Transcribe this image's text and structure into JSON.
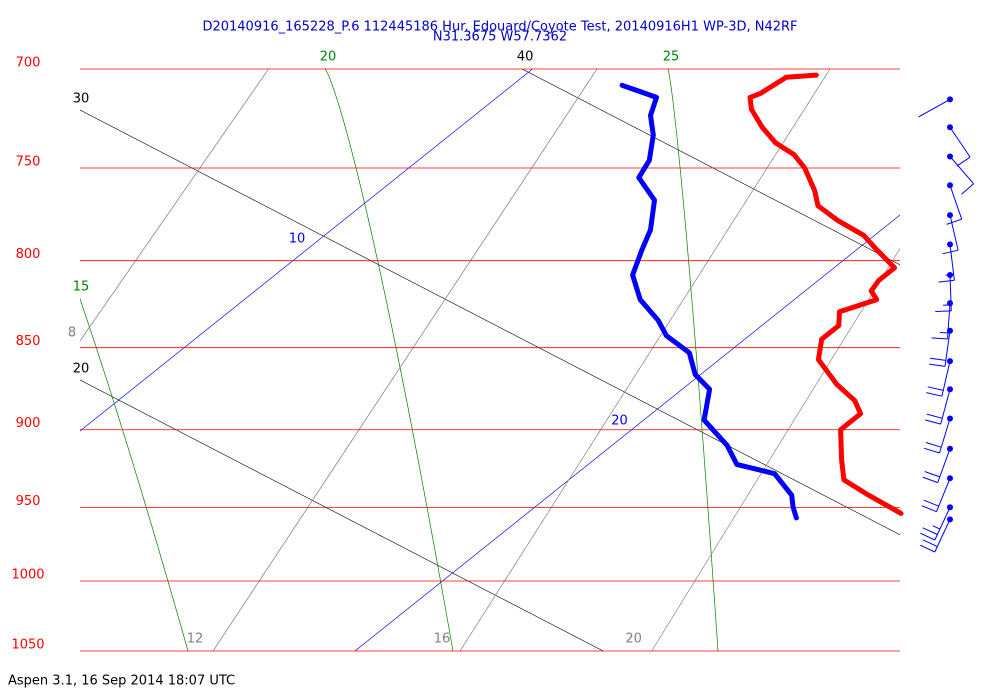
{
  "chart_data": {
    "type": "skewt",
    "title": "D20140916_165228_P.6 112445186 Hur. Edouard/Coyote Test, 20140916H1 WP-3D, N42RF",
    "subtitle": "N31.3675 W57.7362",
    "caption": "Aspen 3.1, 16 Sep 2014  18:07 UTC",
    "log_y": true,
    "ylim": [
      700,
      1050
    ],
    "yticks": [
      700,
      750,
      800,
      850,
      900,
      950,
      1000,
      1050
    ],
    "pressure_line_color": "#ff0000",
    "series": [
      {
        "color": "#ff0000",
        "pressure": [
          703,
          704,
          712,
          714,
          720,
          729,
          737,
          743,
          750,
          762,
          770,
          778,
          786,
          793,
          804,
          811,
          817,
          822,
          829,
          837,
          845,
          857,
          872,
          882,
          890,
          900,
          919,
          932,
          942,
          948,
          954
        ],
        "values": [
          15.3,
          14.8,
          14.7,
          14.6,
          14.9,
          15.5,
          16.1,
          16.7,
          17.2,
          17.9,
          18.3,
          19.0,
          19.8,
          20.3,
          21.1,
          21.1,
          21.2,
          21.5,
          21.1,
          21.4,
          21.4,
          21.8,
          22.7,
          23.4,
          23.8,
          23.8,
          24.5,
          25.0,
          25.8,
          26.3,
          26.8
        ]
      },
      {
        "color": "#0000ff",
        "pressure": [
          708,
          714,
          723,
          733,
          746,
          755,
          767,
          783,
          794,
          808,
          822,
          834,
          843,
          853,
          866,
          875,
          894,
          910,
          922,
          928,
          942,
          950,
          957
        ],
        "values": [
          12.0,
          12.9,
          13.2,
          13.7,
          14.2,
          14.4,
          15.2,
          15.8,
          16.1,
          16.5,
          17.2,
          18.0,
          18.5,
          19.3,
          19.9,
          20.5,
          21.1,
          22.1,
          22.7,
          23.6,
          24.4,
          24.7,
          25.0
        ]
      }
    ],
    "isotherms": {
      "color": "#0000ff",
      "values": [
        10,
        20
      ]
    },
    "dry_adiabats": {
      "color": "#000000",
      "values": [
        20,
        30,
        40
      ]
    },
    "moist_adiabats": {
      "color": "#008000",
      "values": [
        15,
        20,
        25
      ]
    },
    "mixing_ratios": {
      "color": "#808080",
      "values": [
        8,
        12,
        16,
        20
      ]
    },
    "wind": {
      "color": "#0000ff",
      "pressure": [
        715,
        729,
        744,
        759,
        775,
        791,
        808,
        824,
        840,
        858,
        875,
        893,
        912,
        931,
        950,
        958
      ],
      "direction": [
        241,
        146,
        139,
        161,
        167,
        173,
        178,
        184,
        188,
        193,
        195,
        197,
        200,
        202,
        205,
        205
      ],
      "speed": [
        3,
        10,
        10,
        10,
        10,
        15,
        15,
        15,
        20,
        20,
        20,
        20,
        20,
        20,
        25,
        20
      ]
    }
  }
}
